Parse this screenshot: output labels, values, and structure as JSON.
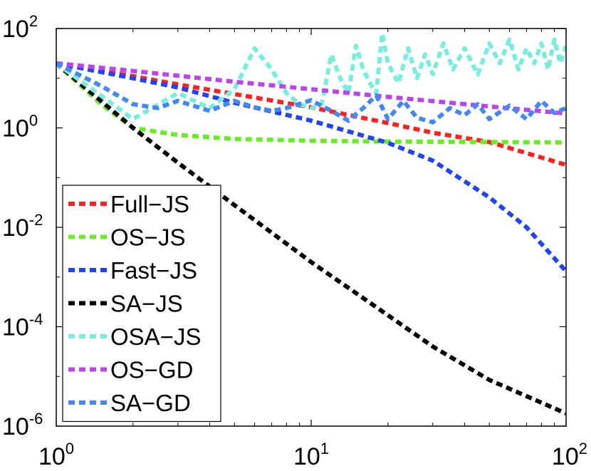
{
  "chart_data": {
    "type": "line",
    "title": "",
    "xlabel": "",
    "ylabel": "",
    "xscale": "log",
    "yscale": "log",
    "xlim": [
      1,
      100
    ],
    "ylim": [
      1e-06,
      100
    ],
    "grid": false,
    "legend_position": "bottom-left",
    "x_ticks": [
      {
        "value": 1,
        "base": "10",
        "exp": "0"
      },
      {
        "value": 10,
        "base": "10",
        "exp": "1"
      },
      {
        "value": 100,
        "base": "10",
        "exp": "2"
      }
    ],
    "y_ticks": [
      {
        "value": 100,
        "base": "10",
        "exp": "2"
      },
      {
        "value": 1,
        "base": "10",
        "exp": "0"
      },
      {
        "value": 0.01,
        "base": "10",
        "exp": "-2"
      },
      {
        "value": 0.0001,
        "base": "10",
        "exp": "-4"
      },
      {
        "value": 1e-06,
        "base": "10",
        "exp": "-6"
      }
    ],
    "series": [
      {
        "name": "Full−JS",
        "color": "#ff2020",
        "x": [
          1,
          2,
          3,
          5,
          10,
          20,
          30,
          50,
          100
        ],
        "y": [
          20,
          11,
          7.5,
          4.8,
          2.6,
          1.25,
          0.8,
          0.52,
          0.18
        ]
      },
      {
        "name": "OS−JS",
        "color": "#66ee22",
        "x": [
          1,
          1.5,
          2,
          3,
          5,
          10,
          20,
          50,
          100
        ],
        "y": [
          20,
          3,
          1.0,
          0.72,
          0.6,
          0.55,
          0.53,
          0.52,
          0.51
        ]
      },
      {
        "name": "Fast−JS",
        "color": "#2244ee",
        "x": [
          1,
          2,
          3,
          5,
          10,
          20,
          30,
          50,
          70,
          100
        ],
        "y": [
          20,
          10,
          6.5,
          3.2,
          1.4,
          0.5,
          0.22,
          0.04,
          0.01,
          0.0013
        ]
      },
      {
        "name": "SA−JS",
        "color": "#000000",
        "x": [
          1,
          2,
          3,
          5,
          10,
          20,
          30,
          50,
          100
        ],
        "y": [
          20,
          1.0,
          0.2,
          0.028,
          0.002,
          0.00017,
          4e-05,
          8.5e-06,
          1.8e-06
        ]
      },
      {
        "name": "OSA−JS",
        "color": "#77eedd",
        "x": [
          1,
          1.6,
          2,
          3,
          4,
          5,
          6,
          7,
          8,
          9,
          10,
          11,
          12,
          13,
          14,
          15,
          16,
          17,
          18,
          19,
          20,
          22,
          24,
          26,
          28,
          30,
          33,
          36,
          40,
          45,
          50,
          55,
          60,
          65,
          70,
          75,
          80,
          85,
          90,
          95,
          100
        ],
        "y": [
          20,
          3.5,
          1.5,
          5,
          2.5,
          6,
          40,
          15,
          5,
          3,
          2.5,
          3,
          30,
          10,
          5,
          45,
          15,
          8,
          5,
          80,
          20,
          8,
          40,
          10,
          30,
          12,
          50,
          15,
          40,
          12,
          50,
          20,
          60,
          15,
          40,
          20,
          50,
          15,
          60,
          20,
          45
        ]
      },
      {
        "name": "OS−GD",
        "color": "#bb44ee",
        "x": [
          1,
          2,
          5,
          10,
          20,
          50,
          100
        ],
        "y": [
          20,
          14,
          8.5,
          6,
          4.2,
          2.7,
          1.95
        ]
      },
      {
        "name": "SA−GD",
        "color": "#4488ee",
        "x": [
          1,
          1.5,
          2,
          2.5,
          3,
          4,
          5,
          6,
          7,
          8,
          10,
          12,
          14,
          16,
          18,
          20,
          23,
          26,
          30,
          35,
          40,
          45,
          50,
          60,
          70,
          80,
          90,
          100
        ],
        "y": [
          20,
          7,
          3,
          2.5,
          3.5,
          2.2,
          3.5,
          2.6,
          2.2,
          2.5,
          3.6,
          2.2,
          1.4,
          2.5,
          4.5,
          1.5,
          3.5,
          1.6,
          1.3,
          2.5,
          1.8,
          3,
          1.5,
          2.8,
          1.5,
          3.5,
          2,
          2.5
        ]
      }
    ]
  }
}
